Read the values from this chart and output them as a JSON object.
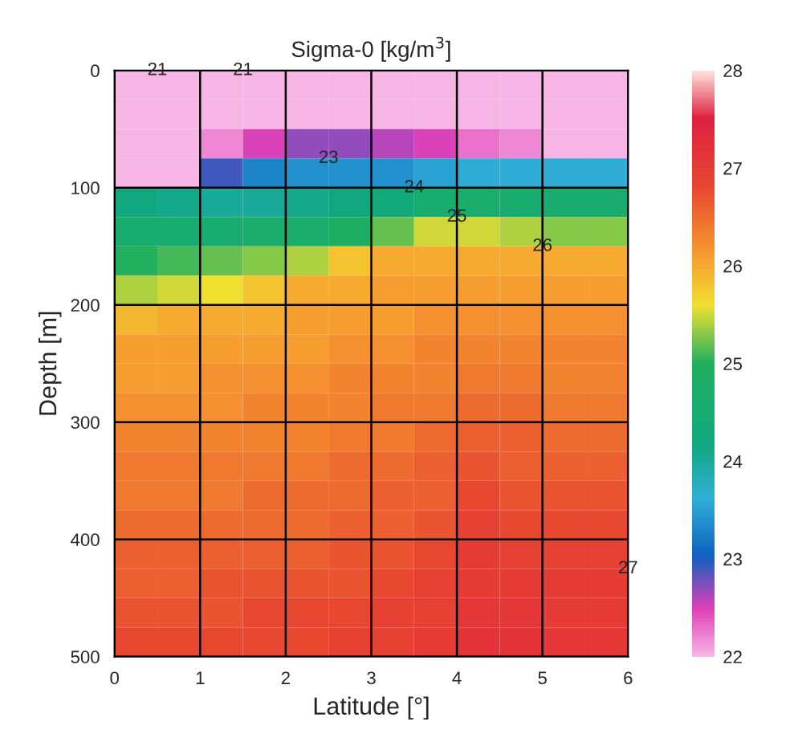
{
  "chart_data": {
    "type": "heatmap",
    "title": "Sigma-0 [kg/m$^{3}$]",
    "xlabel": "Latitude [°]",
    "ylabel": "Depth [m]",
    "xlim": [
      0,
      6
    ],
    "xticks": [
      0,
      1,
      2,
      3,
      4,
      5,
      6
    ],
    "ylim": [
      500,
      0
    ],
    "yticks": [
      0,
      100,
      200,
      300,
      400,
      500
    ],
    "clim": [
      22,
      28
    ],
    "cticks": [
      22,
      23,
      24,
      25,
      26,
      27,
      28
    ],
    "grid": true,
    "cells": [
      [
        22,
        22,
        22,
        22,
        22,
        22,
        22,
        22,
        22,
        22,
        22,
        22
      ],
      [
        22,
        22,
        22,
        22,
        22,
        22,
        22,
        22,
        22,
        22,
        22,
        22
      ],
      [
        22,
        22,
        22.2,
        22.5,
        22.7,
        22.7,
        22.6,
        22.5,
        22.3,
        22.2,
        22,
        22
      ],
      [
        22,
        22,
        22.9,
        23.3,
        23.4,
        23.4,
        23.4,
        23.5,
        23.6,
        23.6,
        23.6,
        23.6
      ],
      [
        24.2,
        24.1,
        24.0,
        24.0,
        24.1,
        24.2,
        24.3,
        24.6,
        24.7,
        24.6,
        24.6,
        24.6
      ],
      [
        24.6,
        24.6,
        24.6,
        24.7,
        24.7,
        24.9,
        25.2,
        25.5,
        25.5,
        25.4,
        25.3,
        25.3
      ],
      [
        25.0,
        25.1,
        25.2,
        25.3,
        25.4,
        25.8,
        26.0,
        26.0,
        26.0,
        26.0,
        26.0,
        26.0
      ],
      [
        25.4,
        25.5,
        25.6,
        25.8,
        26.0,
        26.0,
        26.1,
        26.1,
        26.1,
        26.1,
        26.1,
        26.1
      ],
      [
        25.9,
        26.0,
        26.0,
        26.0,
        26.1,
        26.1,
        26.1,
        26.2,
        26.2,
        26.2,
        26.2,
        26.2
      ],
      [
        26.1,
        26.1,
        26.1,
        26.1,
        26.1,
        26.2,
        26.2,
        26.3,
        26.3,
        26.3,
        26.3,
        26.3
      ],
      [
        26.1,
        26.1,
        26.2,
        26.2,
        26.2,
        26.3,
        26.3,
        26.3,
        26.4,
        26.4,
        26.3,
        26.3
      ],
      [
        26.2,
        26.2,
        26.2,
        26.3,
        26.3,
        26.3,
        26.4,
        26.4,
        26.5,
        26.5,
        26.4,
        26.4
      ],
      [
        26.3,
        26.3,
        26.3,
        26.3,
        26.3,
        26.4,
        26.4,
        26.5,
        26.6,
        26.6,
        26.5,
        26.5
      ],
      [
        26.4,
        26.4,
        26.4,
        26.4,
        26.4,
        26.5,
        26.5,
        26.6,
        26.7,
        26.6,
        26.6,
        26.6
      ],
      [
        26.4,
        26.4,
        26.4,
        26.5,
        26.5,
        26.5,
        26.6,
        26.6,
        26.8,
        26.7,
        26.7,
        26.7
      ],
      [
        26.5,
        26.5,
        26.5,
        26.5,
        26.5,
        26.6,
        26.6,
        26.7,
        26.9,
        26.8,
        26.8,
        26.8
      ],
      [
        26.6,
        26.6,
        26.6,
        26.6,
        26.6,
        26.7,
        26.7,
        26.8,
        27.0,
        26.9,
        26.9,
        26.9
      ],
      [
        26.6,
        26.6,
        26.7,
        26.7,
        26.7,
        26.7,
        26.8,
        26.9,
        27.0,
        27.0,
        27.0,
        27.0
      ],
      [
        26.7,
        26.7,
        26.7,
        26.8,
        26.8,
        26.8,
        26.9,
        26.9,
        27.1,
        27.1,
        27.0,
        27.0
      ],
      [
        26.8,
        26.8,
        26.8,
        26.8,
        26.8,
        26.9,
        26.9,
        27.0,
        27.2,
        27.2,
        27.1,
        27.1
      ]
    ],
    "annotations": [
      "21",
      "21",
      "23",
      "24",
      "25",
      "26",
      "27"
    ]
  }
}
